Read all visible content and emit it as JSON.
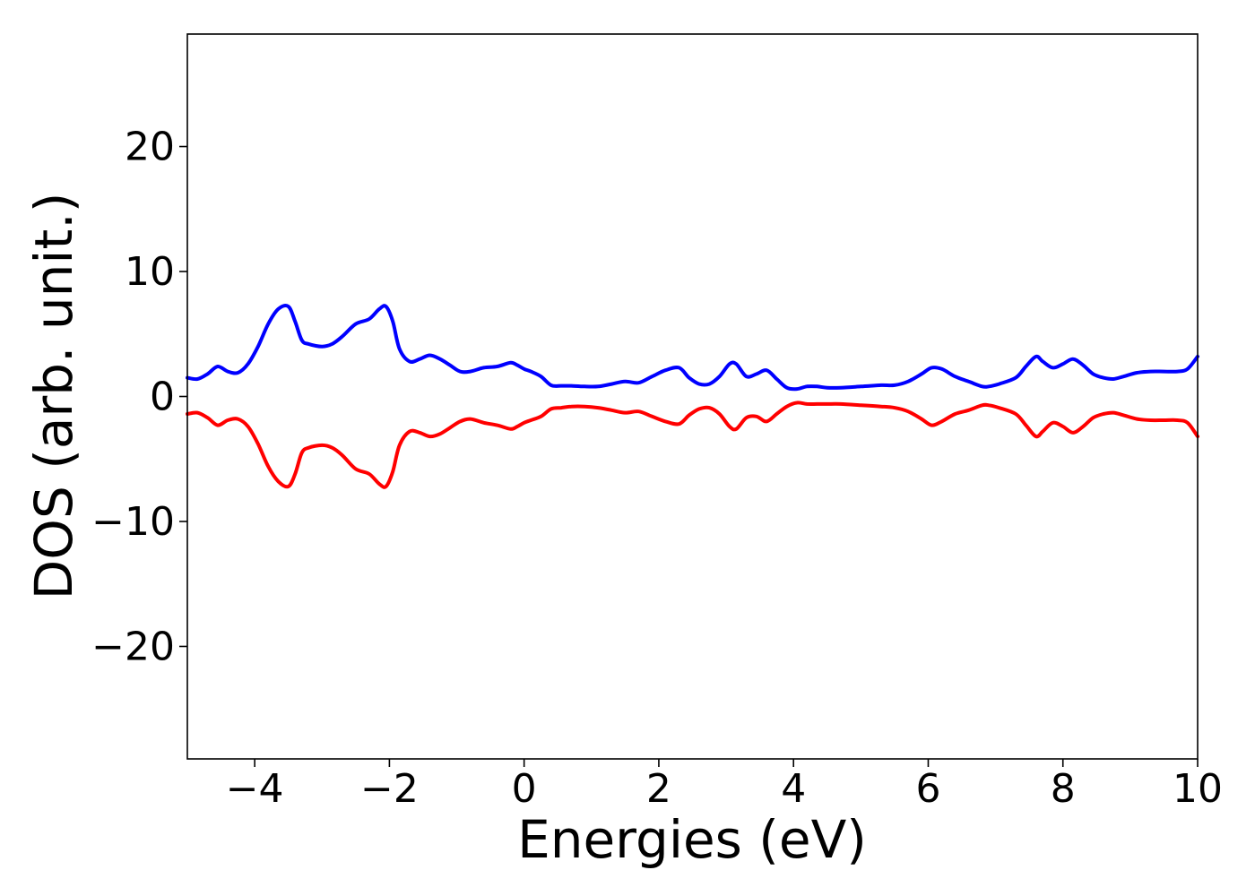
{
  "chart_data": {
    "type": "line",
    "title": "",
    "xlabel": "Energies (eV)",
    "ylabel": "DOS (arb. unit.)",
    "xlim": [
      -5,
      10
    ],
    "ylim": [
      -29,
      29
    ],
    "xticks": [
      -4,
      -2,
      0,
      2,
      4,
      6,
      8,
      10
    ],
    "xtick_labels": [
      "−4",
      "−2",
      "0",
      "2",
      "4",
      "6",
      "8",
      "10"
    ],
    "yticks": [
      -20,
      -10,
      0,
      10,
      20
    ],
    "ytick_labels": [
      "−20",
      "−10",
      "0",
      "10",
      "20"
    ],
    "grid": false,
    "legend": "none",
    "series": [
      {
        "color": "#0000ff",
        "x": [
          -5.0,
          -4.85,
          -4.7,
          -4.55,
          -4.4,
          -4.25,
          -4.1,
          -3.95,
          -3.8,
          -3.65,
          -3.5,
          -3.4,
          -3.3,
          -3.2,
          -3.0,
          -2.85,
          -2.7,
          -2.5,
          -2.3,
          -2.15,
          -2.05,
          -1.95,
          -1.85,
          -1.7,
          -1.55,
          -1.4,
          -1.25,
          -1.1,
          -0.95,
          -0.8,
          -0.6,
          -0.4,
          -0.2,
          -0.1,
          0.0,
          0.1,
          0.25,
          0.4,
          0.55,
          0.7,
          0.9,
          1.1,
          1.3,
          1.5,
          1.7,
          1.9,
          2.1,
          2.3,
          2.45,
          2.6,
          2.75,
          2.9,
          3.05,
          3.15,
          3.3,
          3.45,
          3.6,
          3.75,
          3.9,
          4.05,
          4.2,
          4.35,
          4.5,
          4.7,
          5.0,
          5.3,
          5.5,
          5.7,
          5.9,
          6.05,
          6.2,
          6.4,
          6.6,
          6.8,
          6.9,
          7.05,
          7.3,
          7.45,
          7.6,
          7.7,
          7.85,
          8.0,
          8.15,
          8.3,
          8.45,
          8.6,
          8.75,
          8.9,
          9.1,
          9.3,
          9.5,
          9.7,
          9.85,
          10.0
        ],
        "y": [
          1.5,
          1.4,
          1.8,
          2.4,
          2.0,
          1.9,
          2.6,
          4.0,
          5.8,
          7.0,
          7.2,
          6.0,
          4.5,
          4.2,
          4.0,
          4.2,
          4.8,
          5.8,
          6.2,
          7.0,
          7.2,
          6.0,
          3.8,
          2.8,
          3.0,
          3.3,
          3.0,
          2.5,
          2.0,
          2.0,
          2.3,
          2.4,
          2.7,
          2.5,
          2.2,
          2.0,
          1.6,
          0.9,
          0.85,
          0.85,
          0.8,
          0.8,
          1.0,
          1.2,
          1.1,
          1.6,
          2.1,
          2.3,
          1.5,
          1.0,
          1.0,
          1.6,
          2.6,
          2.6,
          1.6,
          1.8,
          2.1,
          1.4,
          0.7,
          0.6,
          0.8,
          0.8,
          0.7,
          0.7,
          0.8,
          0.9,
          0.9,
          1.2,
          1.8,
          2.3,
          2.2,
          1.6,
          1.2,
          0.8,
          0.8,
          1.0,
          1.5,
          2.4,
          3.2,
          2.8,
          2.3,
          2.6,
          3.0,
          2.5,
          1.8,
          1.5,
          1.4,
          1.6,
          1.9,
          2.0,
          2.0,
          2.0,
          2.2,
          3.2
        ]
      },
      {
        "color": "#ff0000",
        "x": [
          -5.0,
          -4.85,
          -4.7,
          -4.55,
          -4.4,
          -4.25,
          -4.1,
          -3.95,
          -3.8,
          -3.65,
          -3.5,
          -3.4,
          -3.3,
          -3.2,
          -3.0,
          -2.85,
          -2.7,
          -2.5,
          -2.3,
          -2.15,
          -2.05,
          -1.95,
          -1.85,
          -1.7,
          -1.55,
          -1.4,
          -1.25,
          -1.1,
          -0.95,
          -0.8,
          -0.6,
          -0.4,
          -0.2,
          -0.1,
          0.0,
          0.1,
          0.25,
          0.4,
          0.55,
          0.7,
          0.9,
          1.1,
          1.3,
          1.5,
          1.7,
          1.9,
          2.1,
          2.3,
          2.45,
          2.6,
          2.75,
          2.9,
          3.05,
          3.15,
          3.3,
          3.45,
          3.6,
          3.75,
          3.9,
          4.05,
          4.2,
          4.35,
          4.5,
          4.7,
          5.0,
          5.3,
          5.5,
          5.7,
          5.9,
          6.05,
          6.2,
          6.4,
          6.6,
          6.8,
          6.9,
          7.05,
          7.3,
          7.45,
          7.6,
          7.7,
          7.85,
          8.0,
          8.15,
          8.3,
          8.45,
          8.6,
          8.75,
          8.9,
          9.1,
          9.3,
          9.5,
          9.7,
          9.85,
          10.0
        ],
        "y": [
          -1.4,
          -1.3,
          -1.7,
          -2.3,
          -1.9,
          -1.8,
          -2.4,
          -3.8,
          -5.6,
          -6.8,
          -7.2,
          -6.2,
          -4.5,
          -4.1,
          -3.9,
          -4.1,
          -4.7,
          -5.8,
          -6.2,
          -7.0,
          -7.2,
          -6.0,
          -3.9,
          -2.8,
          -2.9,
          -3.2,
          -3.0,
          -2.5,
          -2.0,
          -1.8,
          -2.1,
          -2.3,
          -2.6,
          -2.4,
          -2.1,
          -1.9,
          -1.6,
          -1.0,
          -0.9,
          -0.8,
          -0.8,
          -0.9,
          -1.1,
          -1.3,
          -1.2,
          -1.6,
          -2.0,
          -2.2,
          -1.5,
          -1.0,
          -0.9,
          -1.4,
          -2.4,
          -2.6,
          -1.7,
          -1.6,
          -2.0,
          -1.4,
          -0.8,
          -0.5,
          -0.6,
          -0.6,
          -0.6,
          -0.6,
          -0.7,
          -0.8,
          -0.9,
          -1.2,
          -1.8,
          -2.3,
          -2.0,
          -1.4,
          -1.1,
          -0.7,
          -0.7,
          -0.9,
          -1.4,
          -2.3,
          -3.2,
          -2.8,
          -2.1,
          -2.4,
          -2.9,
          -2.4,
          -1.7,
          -1.4,
          -1.3,
          -1.5,
          -1.8,
          -1.9,
          -1.9,
          -1.9,
          -2.1,
          -3.2
        ]
      }
    ]
  }
}
